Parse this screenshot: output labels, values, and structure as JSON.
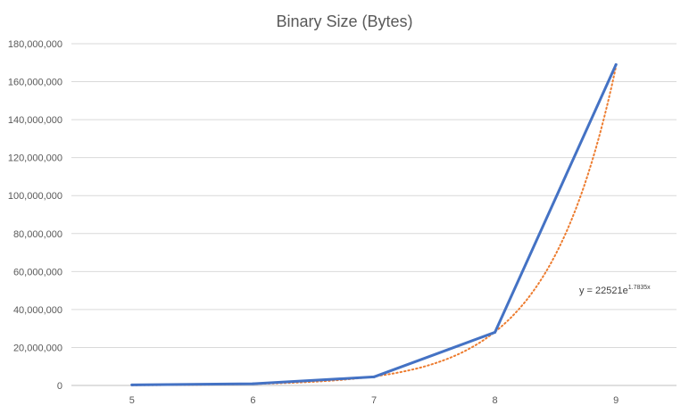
{
  "chart_data": {
    "type": "line",
    "title": "Binary Size (Bytes)",
    "xlabel": "",
    "ylabel": "",
    "categories": [
      "5",
      "6",
      "7",
      "8",
      "9"
    ],
    "series": [
      {
        "values": [
          300000,
          900000,
          4500000,
          28000000,
          169000000
        ]
      }
    ],
    "trendline": {
      "type": "exponential",
      "equation_base": "y = 22521e",
      "equation_exponent": "1.7835x",
      "coefficient": 22521,
      "rate": 1.7835
    },
    "y_tick_labels": [
      "0",
      "20,000,000",
      "40,000,000",
      "60,000,000",
      "80,000,000",
      "100,000,000",
      "120,000,000",
      "140,000,000",
      "160,000,000",
      "180,000,000"
    ],
    "ylim": [
      0,
      180000000
    ],
    "grid": true,
    "legend": "none",
    "colors": {
      "series": "#4472c4",
      "trendline": "#ed7d31",
      "grid": "#d9d9d9",
      "text": "#595959"
    }
  }
}
